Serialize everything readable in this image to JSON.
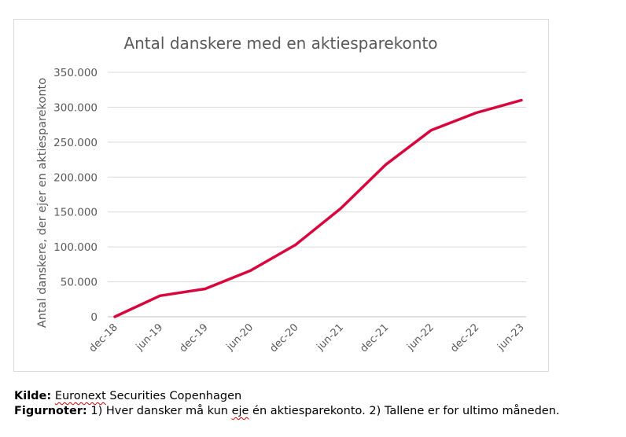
{
  "chart_data": {
    "type": "line",
    "title": "Antal danskere med en aktiesparekonto",
    "xlabel": "",
    "ylabel": "Antal danskere, der ejer en aktiesparekonto",
    "categories": [
      "dec-18",
      "jun-19",
      "dec-19",
      "jun-20",
      "dec-20",
      "jun-21",
      "dec-21",
      "jun-22",
      "dec-22",
      "jun-23"
    ],
    "series": [
      {
        "values": [
          0,
          30000,
          40000,
          66000,
          103000,
          155000,
          218000,
          267000,
          292000,
          310000
        ],
        "color": "#d7063c"
      }
    ],
    "ylim": [
      0,
      350000
    ],
    "yticks": [
      0,
      50000,
      100000,
      150000,
      200000,
      250000,
      300000,
      350000
    ],
    "ytick_labels": [
      "0",
      "50.000",
      "100.000",
      "150.000",
      "200.000",
      "250.000",
      "300.000",
      "350.000"
    ],
    "grid": true,
    "legend": "none"
  },
  "footnotes": {
    "source_label": "Kilde:",
    "source_text_pre": " ",
    "source_text_underlined": "Euronext",
    "source_text_post": " Securities Copenhagen",
    "notes_label": "Figurnoter:",
    "notes_text_pre": " 1) Hver dansker må kun ",
    "notes_text_underlined": "eje",
    "notes_text_post": " én aktiesparekonto. 2) Tallene er for ultimo måneden."
  }
}
